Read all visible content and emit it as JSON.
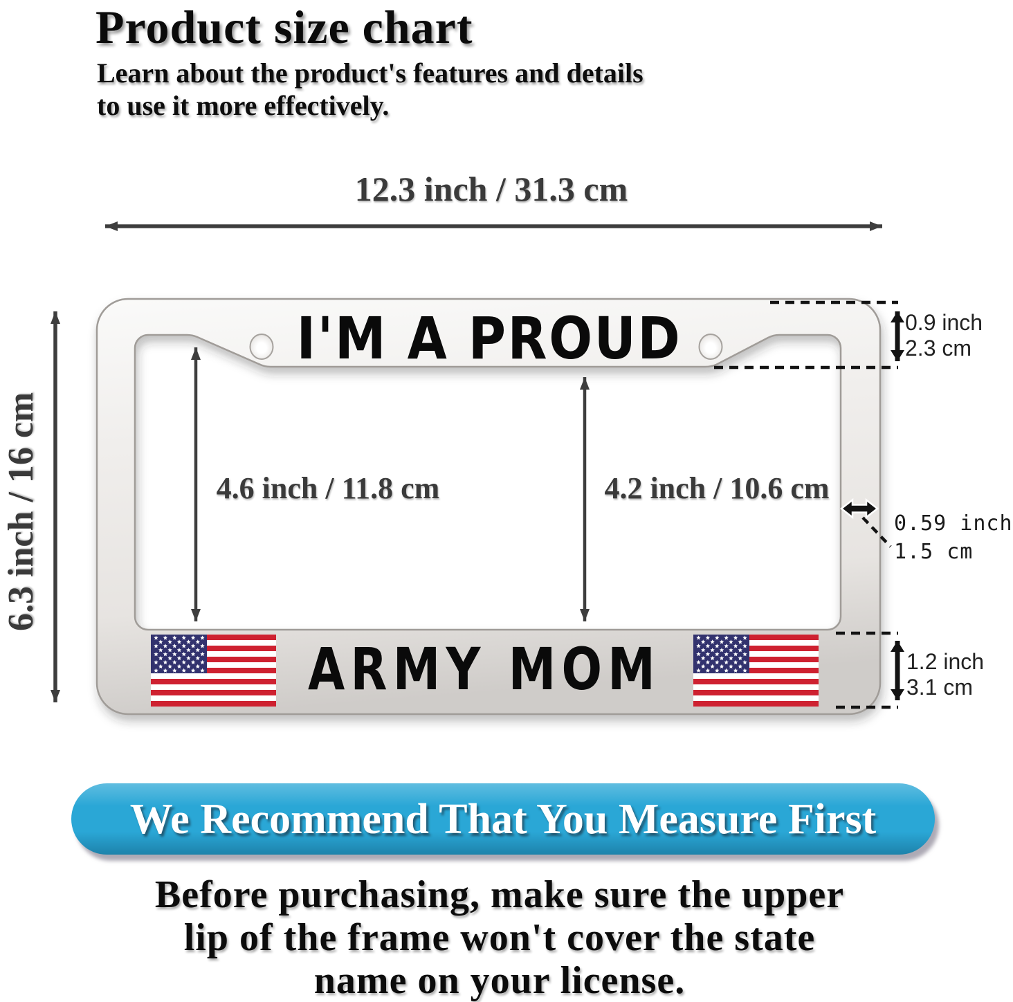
{
  "header": {
    "title": "Product size chart",
    "subtitle_line1": "Learn about the product's features and details",
    "subtitle_line2": "to use it more effectively."
  },
  "dimensions": {
    "frame_width": "12.3 inch / 31.3 cm",
    "frame_height": "6.3 inch / 16 cm",
    "inner_height_left": "4.6 inch / 11.8 cm",
    "inner_height_right": "4.2 inch / 10.6 cm",
    "top_lip_inch": "0.9 inch",
    "top_lip_cm": "2.3 cm",
    "side_width_inch": "0.59 inch",
    "side_width_cm": "1.5 cm",
    "bottom_lip_inch": "1.2 inch",
    "bottom_lip_cm": "3.1 cm"
  },
  "frame": {
    "top_text": "I'M A PROUD",
    "bottom_text": "ARMY MOM",
    "left_flag_icon": "us-flag-icon",
    "right_flag_icon": "us-flag-icon",
    "flag_colors": {
      "red": "#ce2130",
      "blue": "#32326e",
      "white": "#ffffff"
    }
  },
  "banner": {
    "text": "We Recommend That You Measure First",
    "background": "#2aa7d6",
    "text_color": "#ffffff"
  },
  "footer": {
    "line1": "Before purchasing, make sure the upper",
    "line2": "lip of the frame won't cover the state",
    "line3": "name on your license."
  },
  "colors": {
    "arrow": "#3e3e3e",
    "dashed_line": "#131313",
    "frame_silver_edge": "#a09c98"
  }
}
